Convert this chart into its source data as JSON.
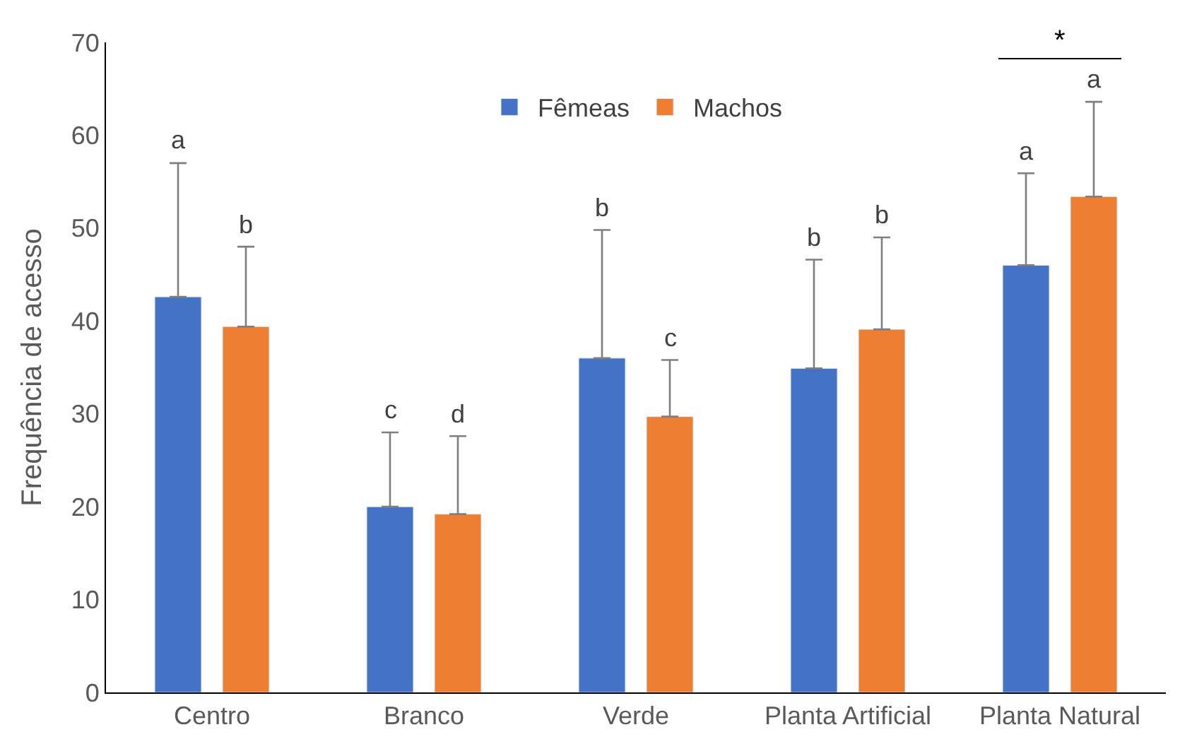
{
  "chart_data": {
    "type": "bar",
    "ylabel": "Frequência de acesso",
    "categories": [
      "Centro",
      "Branco",
      "Verde",
      "Planta Artificial",
      "Planta Natural"
    ],
    "series": [
      {
        "name": "Fêmeas",
        "color": "#4472c4",
        "values": [
          42.6,
          20.0,
          36.0,
          34.9,
          46.0
        ],
        "errors": [
          [
            42.6,
            57.0
          ],
          [
            20.0,
            28.0
          ],
          [
            36.0,
            49.8
          ],
          [
            34.9,
            46.6
          ],
          [
            46.0,
            55.9
          ]
        ]
      },
      {
        "name": "Machos",
        "color": "#ed7d31",
        "values": [
          39.4,
          19.2,
          29.7,
          39.1,
          53.4
        ],
        "errors": [
          [
            39.4,
            48.0
          ],
          [
            19.2,
            27.6
          ],
          [
            29.7,
            35.8
          ],
          [
            39.1,
            49.0
          ],
          [
            53.4,
            63.6
          ]
        ]
      }
    ],
    "annotations": [
      "a",
      "b",
      "c",
      "d",
      "b",
      "c",
      "b",
      "b",
      "a",
      "a",
      "*"
    ],
    "ylim": [
      0,
      70
    ],
    "yticks": [
      0,
      10,
      20,
      30,
      40,
      50,
      60,
      70
    ],
    "legend": "top"
  }
}
